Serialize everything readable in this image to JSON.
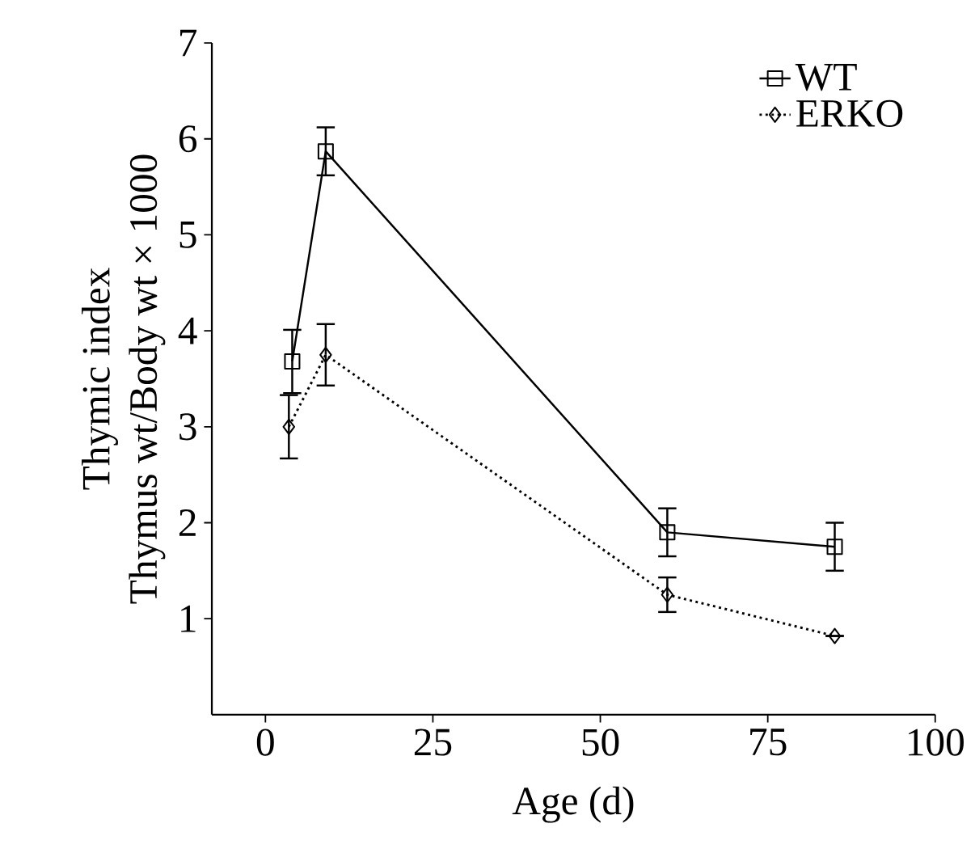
{
  "chart_data": {
    "type": "line",
    "xlabel": "Age (d)",
    "ylabel": "Thymic index\nThymus wt/Body wt × 1000",
    "xlim": [
      -8,
      100
    ],
    "ylim": [
      0,
      7
    ],
    "xticks": [
      0,
      25,
      50,
      75,
      100
    ],
    "yticks": [
      1,
      2,
      3,
      4,
      5,
      6,
      7
    ],
    "legend": "top right",
    "grid": false,
    "series": [
      {
        "name": "WT",
        "color": "#000000",
        "x": [
          4,
          9,
          60,
          85
        ],
        "values": [
          3.68,
          5.87,
          1.9,
          1.75
        ],
        "errors": [
          0.33,
          0.25,
          0.25,
          0.25
        ],
        "marker": "square",
        "line_style": "solid"
      },
      {
        "name": "ERKO",
        "color": "#000000",
        "x": [
          3.5,
          9,
          60,
          85
        ],
        "values": [
          3.0,
          3.75,
          1.25,
          0.82
        ],
        "errors": [
          0.33,
          0.32,
          0.18,
          null
        ],
        "marker": "diamond",
        "line_style": "dotted"
      }
    ]
  }
}
